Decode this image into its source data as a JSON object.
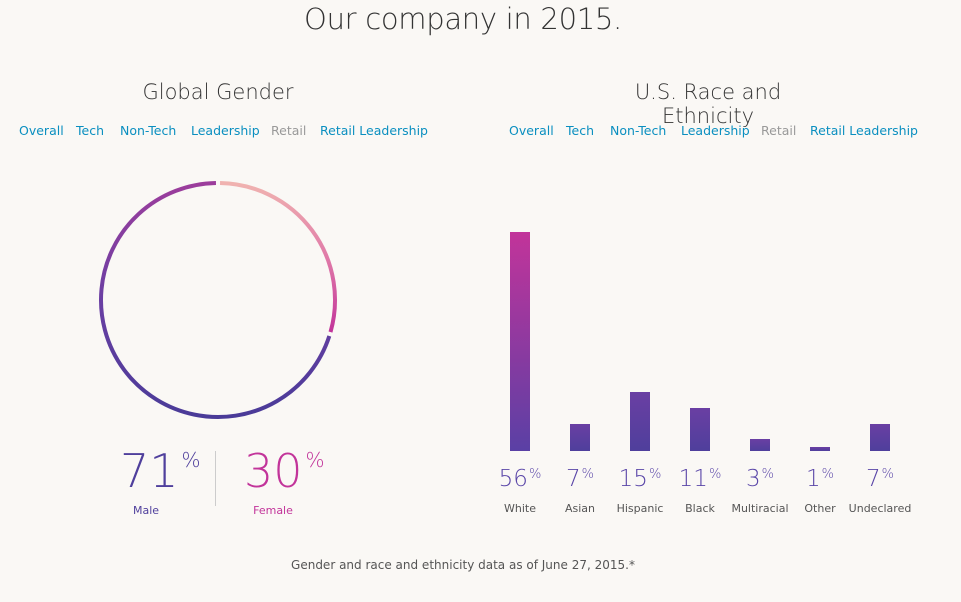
{
  "page": {
    "title": "Our company in 2015.",
    "footnote": "Gender and race and ethnicity data as of June 27, 2015.*"
  },
  "gender": {
    "title": "Global Gender",
    "tabs": [
      "Overall",
      "Tech",
      "Non-Tech",
      "Leadership",
      "Retail",
      "Retail Leadership"
    ],
    "active_tab": "Retail",
    "male": {
      "value": "71",
      "unit": "%",
      "label": "Male"
    },
    "female": {
      "value": "30",
      "unit": "%",
      "label": "Female"
    }
  },
  "race": {
    "title": "U.S. Race and Ethnicity",
    "tabs": [
      "Overall",
      "Tech",
      "Non-Tech",
      "Leadership",
      "Retail",
      "Retail Leadership"
    ],
    "active_tab": "Retail"
  },
  "colors": {
    "male": "#4f3f9c",
    "female": "#c2349a",
    "light_pink": "#f0b3b0",
    "link": "#0a8fc0",
    "active_tab": "#999999"
  },
  "chart_data": [
    {
      "type": "pie",
      "title": "Global Gender",
      "categories": [
        "Male",
        "Female"
      ],
      "values": [
        71,
        30
      ],
      "unit": "%"
    },
    {
      "type": "bar",
      "title": "U.S. Race and Ethnicity",
      "categories": [
        "White",
        "Asian",
        "Hispanic",
        "Black",
        "Multiracial",
        "Other",
        "Undeclared"
      ],
      "values": [
        56,
        7,
        15,
        11,
        3,
        1,
        7
      ],
      "unit": "%",
      "ylim": [
        0,
        56
      ]
    }
  ]
}
